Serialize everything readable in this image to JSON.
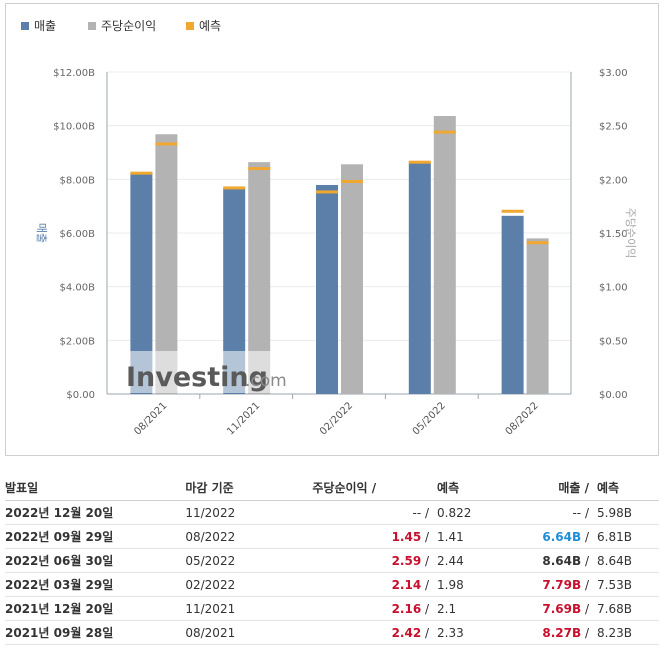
{
  "legend": [
    {
      "label": "매출",
      "color": "#5b7fa8"
    },
    {
      "label": "주당순이익",
      "color": "#b3b3b3"
    },
    {
      "label": "예측",
      "color": "#f0a830"
    }
  ],
  "watermark": {
    "brand": "Investing",
    "suffix": ".com"
  },
  "colors": {
    "revenue": "#5b7fa8",
    "eps": "#b3b3b3",
    "forecast": "#f0a830",
    "beat": "#c8102e",
    "miss": "#1e8fd6"
  },
  "chart_data": {
    "type": "bar",
    "categories": [
      "08/2021",
      "11/2021",
      "02/2022",
      "05/2022",
      "08/2022"
    ],
    "series": [
      {
        "name": "매출",
        "axis": "left",
        "values": [
          8.27,
          7.69,
          7.79,
          8.64,
          6.64
        ],
        "forecast": [
          8.23,
          7.68,
          7.53,
          8.64,
          6.81
        ]
      },
      {
        "name": "주당순이익",
        "axis": "right",
        "values": [
          2.42,
          2.16,
          2.14,
          2.59,
          1.45
        ],
        "forecast": [
          2.33,
          2.1,
          1.98,
          2.44,
          1.41
        ]
      }
    ],
    "y_left": {
      "label": "매출",
      "ticks": [
        "$0.00",
        "$2.00B",
        "$4.00B",
        "$6.00B",
        "$8.00B",
        "$10.00B",
        "$12.00B"
      ],
      "range": [
        0,
        12
      ]
    },
    "y_right": {
      "label": "주당순이익",
      "ticks": [
        "$0.00",
        "$0.50",
        "$1.00",
        "$1.50",
        "$2.00",
        "$2.50",
        "$3.00"
      ],
      "range": [
        0,
        3
      ]
    }
  },
  "table": {
    "headers": {
      "date": "발표일",
      "period": "마감 기준",
      "eps": "주당순이익 /",
      "eps_fc": "예측",
      "rev": "매출 /",
      "rev_fc": "예측"
    },
    "rows": [
      {
        "date": "2022년 12월 20일",
        "period": "11/2022",
        "eps": "--",
        "eps_cls": "none",
        "eps_fc": "0.822",
        "rev": "--",
        "rev_cls": "none",
        "rev_fc": "5.98B"
      },
      {
        "date": "2022년 09월 29일",
        "period": "08/2022",
        "eps": "1.45",
        "eps_cls": "pos",
        "eps_fc": "1.41",
        "rev": "6.64B",
        "rev_cls": "neg",
        "rev_fc": "6.81B"
      },
      {
        "date": "2022년 06월 30일",
        "period": "05/2022",
        "eps": "2.59",
        "eps_cls": "pos",
        "eps_fc": "2.44",
        "rev": "8.64B",
        "rev_cls": "none-bold",
        "rev_fc": "8.64B"
      },
      {
        "date": "2022년 03월 29일",
        "period": "02/2022",
        "eps": "2.14",
        "eps_cls": "pos",
        "eps_fc": "1.98",
        "rev": "7.79B",
        "rev_cls": "pos",
        "rev_fc": "7.53B"
      },
      {
        "date": "2021년 12월 20일",
        "period": "11/2021",
        "eps": "2.16",
        "eps_cls": "pos",
        "eps_fc": "2.1",
        "rev": "7.69B",
        "rev_cls": "pos",
        "rev_fc": "7.68B"
      },
      {
        "date": "2021년 09월 28일",
        "period": "08/2021",
        "eps": "2.42",
        "eps_cls": "pos",
        "eps_fc": "2.33",
        "rev": "8.27B",
        "rev_cls": "pos",
        "rev_fc": "8.23B"
      }
    ]
  }
}
